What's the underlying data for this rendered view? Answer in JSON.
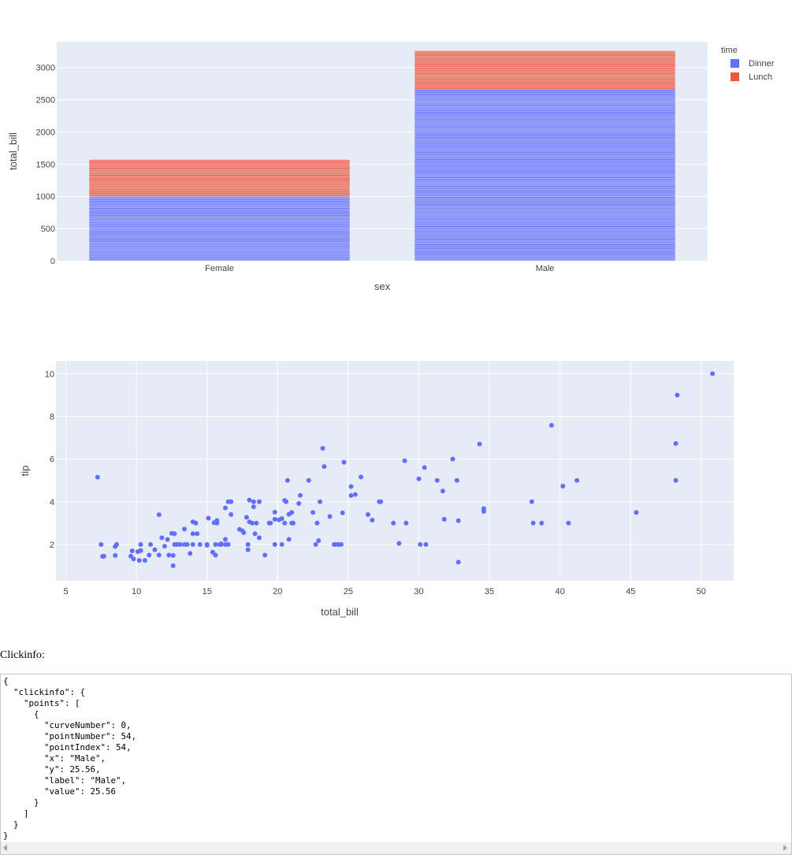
{
  "chart_data": [
    {
      "type": "bar",
      "barmode": "stack",
      "xlabel": "sex",
      "ylabel": "total_bill",
      "categories": [
        "Female",
        "Male"
      ],
      "ylim": [
        0,
        3400
      ],
      "yticks": [
        0,
        500,
        1000,
        1500,
        2000,
        2500,
        3000
      ],
      "legend_title": "time",
      "legend_position": "top-right",
      "grid": true,
      "series": [
        {
          "name": "Dinner",
          "color": "#636efa",
          "values": [
            1000,
            2660
          ]
        },
        {
          "name": "Lunch",
          "color": "#ef553b",
          "values": [
            570,
            600
          ]
        }
      ]
    },
    {
      "type": "scatter",
      "xlabel": "total_bill",
      "ylabel": "tip",
      "xlim": [
        4.3,
        52.3
      ],
      "ylim": [
        0.3,
        10.6
      ],
      "xticks": [
        5,
        10,
        15,
        20,
        25,
        30,
        35,
        40,
        45,
        50
      ],
      "yticks": [
        2,
        4,
        6,
        8,
        10
      ],
      "grid": true,
      "color": "#636efa",
      "points": [
        [
          50.8,
          10.0
        ],
        [
          48.3,
          9.0
        ],
        [
          39.4,
          7.58
        ],
        [
          48.2,
          6.73
        ],
        [
          34.3,
          6.7
        ],
        [
          23.2,
          6.5
        ],
        [
          32.4,
          6.0
        ],
        [
          29.0,
          5.92
        ],
        [
          24.7,
          5.85
        ],
        [
          23.3,
          5.65
        ],
        [
          30.4,
          5.6
        ],
        [
          7.25,
          5.15
        ],
        [
          25.9,
          5.16
        ],
        [
          30.0,
          5.07
        ],
        [
          41.2,
          5.0
        ],
        [
          48.2,
          5.0
        ],
        [
          32.7,
          5.0
        ],
        [
          31.3,
          5.0
        ],
        [
          22.2,
          5.0
        ],
        [
          20.7,
          5.0
        ],
        [
          40.2,
          4.73
        ],
        [
          25.2,
          4.71
        ],
        [
          31.7,
          4.5
        ],
        [
          25.5,
          4.34
        ],
        [
          25.2,
          4.29
        ],
        [
          21.6,
          4.3
        ],
        [
          27.2,
          4.0
        ],
        [
          27.3,
          4.0
        ],
        [
          38.0,
          4.0
        ],
        [
          18.0,
          4.08
        ],
        [
          18.3,
          4.0
        ],
        [
          18.7,
          4.0
        ],
        [
          16.5,
          4.0
        ],
        [
          16.7,
          4.0
        ],
        [
          20.5,
          4.06
        ],
        [
          20.6,
          4.0
        ],
        [
          23.0,
          4.0
        ],
        [
          21.5,
          3.92
        ],
        [
          18.3,
          3.76
        ],
        [
          16.3,
          3.71
        ],
        [
          34.6,
          3.68
        ],
        [
          34.6,
          3.55
        ],
        [
          45.4,
          3.5
        ],
        [
          23.7,
          3.31
        ],
        [
          21.0,
          3.5
        ],
        [
          22.5,
          3.5
        ],
        [
          24.6,
          3.48
        ],
        [
          26.4,
          3.4
        ],
        [
          16.7,
          3.4
        ],
        [
          11.6,
          3.39
        ],
        [
          19.8,
          3.51
        ],
        [
          20.8,
          3.41
        ],
        [
          20.3,
          3.21
        ],
        [
          19.8,
          3.18
        ],
        [
          20.1,
          3.15
        ],
        [
          17.8,
          3.27
        ],
        [
          15.7,
          3.12
        ],
        [
          14.0,
          3.06
        ],
        [
          14.2,
          3.0
        ],
        [
          13.4,
          2.72
        ],
        [
          15.5,
          3.02
        ],
        [
          15.7,
          3.0
        ],
        [
          18.0,
          3.06
        ],
        [
          18.2,
          3.0
        ],
        [
          18.5,
          3.0
        ],
        [
          19.5,
          3.0
        ],
        [
          20.5,
          3.0
        ],
        [
          21.0,
          3.0
        ],
        [
          21.1,
          3.0
        ],
        [
          22.8,
          3.0
        ],
        [
          26.7,
          3.14
        ],
        [
          28.2,
          3.0
        ],
        [
          29.1,
          3.0
        ],
        [
          31.8,
          3.18
        ],
        [
          32.8,
          3.11
        ],
        [
          38.1,
          3.0
        ],
        [
          38.7,
          3.0
        ],
        [
          40.6,
          3.0
        ],
        [
          15.1,
          3.23
        ],
        [
          19.4,
          3.0
        ],
        [
          17.3,
          2.71
        ],
        [
          17.5,
          2.64
        ],
        [
          17.6,
          2.55
        ],
        [
          18.4,
          2.5
        ],
        [
          14.0,
          2.5
        ],
        [
          14.3,
          2.5
        ],
        [
          12.5,
          2.52
        ],
        [
          12.7,
          2.5
        ],
        [
          16.0,
          2.03
        ],
        [
          16.3,
          2.24
        ],
        [
          18.7,
          2.31
        ],
        [
          20.8,
          2.24
        ],
        [
          11.8,
          2.31
        ],
        [
          12.2,
          2.23
        ],
        [
          13.6,
          2.0
        ],
        [
          12.7,
          2.0
        ],
        [
          12.9,
          2.0
        ],
        [
          13.1,
          2.0
        ],
        [
          13.4,
          2.0
        ],
        [
          14.0,
          2.0
        ],
        [
          14.5,
          2.0
        ],
        [
          15.0,
          2.0
        ],
        [
          15.6,
          2.0
        ],
        [
          15.9,
          2.0
        ],
        [
          16.0,
          2.0
        ],
        [
          16.3,
          2.0
        ],
        [
          16.5,
          2.0
        ],
        [
          17.9,
          2.0
        ],
        [
          19.8,
          2.0
        ],
        [
          20.3,
          2.0
        ],
        [
          22.7,
          2.0
        ],
        [
          24.0,
          2.0
        ],
        [
          24.3,
          2.0
        ],
        [
          24.5,
          2.0
        ],
        [
          8.5,
          1.9
        ],
        [
          8.6,
          2.0
        ],
        [
          7.5,
          2.0
        ],
        [
          10.3,
          2.0
        ],
        [
          11.0,
          2.0
        ],
        [
          12.0,
          1.92
        ],
        [
          15.0,
          1.96
        ],
        [
          22.9,
          2.18
        ],
        [
          28.6,
          2.05
        ],
        [
          30.1,
          2.0
        ],
        [
          30.5,
          2.0
        ],
        [
          24.1,
          2.0
        ],
        [
          9.7,
          1.7
        ],
        [
          10.1,
          1.66
        ],
        [
          10.3,
          1.71
        ],
        [
          11.3,
          1.75
        ],
        [
          13.8,
          1.58
        ],
        [
          15.4,
          1.64
        ],
        [
          15.6,
          1.5
        ],
        [
          17.9,
          1.75
        ],
        [
          19.1,
          1.5
        ],
        [
          11.6,
          1.5
        ],
        [
          12.3,
          1.5
        ],
        [
          12.6,
          1.48
        ],
        [
          7.6,
          1.44
        ],
        [
          7.7,
          1.45
        ],
        [
          8.5,
          1.48
        ],
        [
          9.6,
          1.45
        ],
        [
          9.8,
          1.32
        ],
        [
          10.2,
          1.25
        ],
        [
          10.6,
          1.25
        ],
        [
          10.9,
          1.5
        ],
        [
          12.6,
          1.0
        ],
        [
          32.8,
          1.17
        ]
      ]
    }
  ],
  "clickinfo": {
    "label": "Clickinfo:",
    "lines": [
      "{",
      "  \"clickinfo\": {",
      "    \"points\": [",
      "      {",
      "        \"curveNumber\": 0,",
      "        \"pointNumber\": 54,",
      "        \"pointIndex\": 54,",
      "        \"x\": \"Male\",",
      "        \"y\": 25.56,",
      "        \"label\": \"Male\",",
      "        \"value\": 25.56",
      "      }",
      "    ]",
      "  }",
      "}"
    ]
  }
}
